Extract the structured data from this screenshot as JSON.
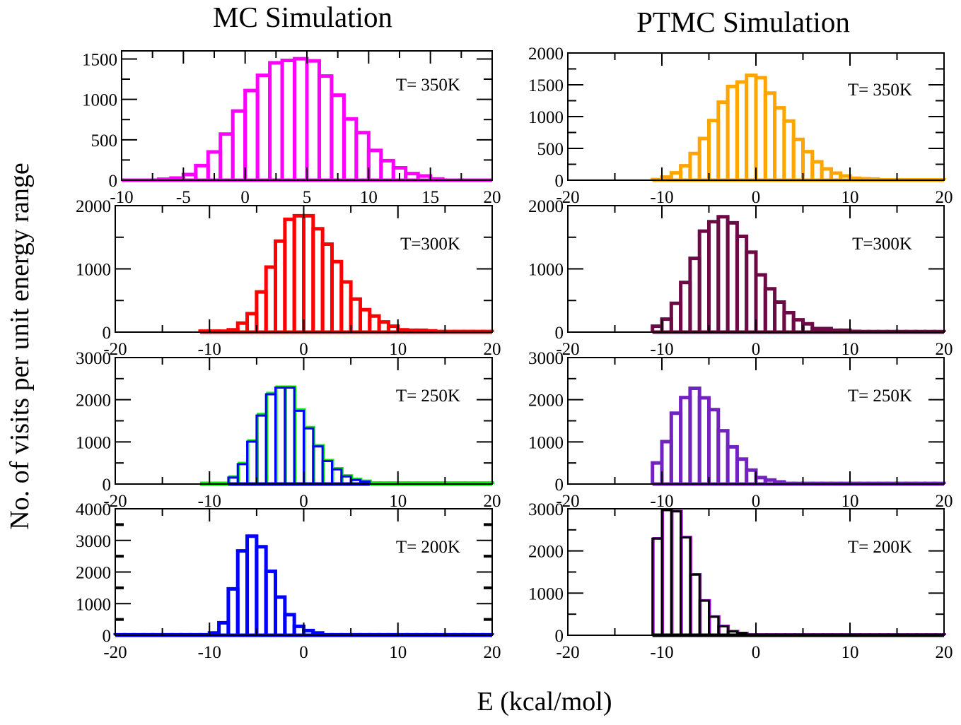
{
  "figure": {
    "column_titles": [
      "MC Simulation",
      "PTMC Simulation"
    ],
    "ylabel": "No. of visits per unit energy range",
    "xlabel": "E (kcal/mol)"
  },
  "chart_data": [
    {
      "type": "bar",
      "id": "mc-350",
      "column": "MC Simulation",
      "annotation": "T= 350K",
      "xlim": [
        -10,
        20
      ],
      "ylim": [
        0,
        1600
      ],
      "xticks": [
        -10,
        -5,
        0,
        5,
        10,
        15,
        20
      ],
      "xminor": 2.5,
      "yticks": [
        0,
        500,
        1000,
        1500
      ],
      "yminor": 250,
      "bin_width": 1,
      "series": [
        {
          "name": "MC 350K",
          "color": "#ff00ff",
          "bin_starts": [
            -10,
            -9,
            -8,
            -7,
            -6,
            -5,
            -4,
            -3,
            -2,
            -1,
            0,
            1,
            2,
            3,
            4,
            5,
            6,
            7,
            8,
            9,
            10,
            11,
            12,
            13,
            14,
            15,
            16,
            17,
            18,
            19
          ],
          "values": [
            0,
            0,
            0,
            12,
            26,
            70,
            180,
            350,
            571,
            856,
            1109,
            1297,
            1453,
            1482,
            1503,
            1476,
            1288,
            1053,
            759,
            588,
            368,
            241,
            153,
            82,
            53,
            15,
            0,
            0,
            0,
            0
          ]
        }
      ]
    },
    {
      "type": "bar",
      "id": "ptmc-350",
      "column": "PTMC Simulation",
      "annotation": "T= 350K",
      "xlim": [
        -20,
        20
      ],
      "ylim": [
        0,
        2000
      ],
      "xticks": [
        -20,
        -10,
        0,
        10,
        20
      ],
      "xminor": 5,
      "yticks": [
        0,
        500,
        1000,
        1500,
        2000
      ],
      "yminor": 250,
      "bin_width": 1,
      "series": [
        {
          "name": "PTMC 350K",
          "color": "#ffa500",
          "bin_starts": [
            -11,
            -10,
            -9,
            -8,
            -7,
            -6,
            -5,
            -4,
            -3,
            -2,
            -1,
            0,
            1,
            2,
            3,
            4,
            5,
            6,
            7,
            8,
            9,
            10,
            11,
            12,
            13,
            14,
            15,
            16,
            17,
            18,
            19
          ],
          "values": [
            10,
            48,
            115,
            226,
            419,
            656,
            937,
            1226,
            1474,
            1544,
            1648,
            1611,
            1370,
            1137,
            930,
            641,
            448,
            289,
            178,
            111,
            67,
            30,
            22,
            18,
            5,
            5,
            5,
            5,
            5,
            5,
            5
          ]
        }
      ]
    },
    {
      "type": "bar",
      "id": "mc-300",
      "column": "MC Simulation",
      "annotation": "T=300K",
      "xlim": [
        -20,
        20
      ],
      "ylim": [
        0,
        2000
      ],
      "xticks": [
        -20,
        -10,
        0,
        10,
        20
      ],
      "xminor": 5,
      "yticks": [
        0,
        1000,
        2000
      ],
      "yminor": 500,
      "bin_width": 1,
      "series": [
        {
          "name": "MC 300K",
          "color": "#ff0000",
          "bin_starts": [
            -11,
            -10,
            -9,
            -8,
            -7,
            -6,
            -5,
            -4,
            -3,
            -2,
            -1,
            0,
            1,
            2,
            3,
            4,
            5,
            6,
            7,
            8,
            9,
            10,
            11,
            12,
            13,
            14,
            15,
            16,
            17,
            18,
            19
          ],
          "values": [
            15,
            15,
            15,
            37,
            142,
            292,
            636,
            1028,
            1439,
            1783,
            1839,
            1839,
            1634,
            1391,
            1114,
            793,
            523,
            355,
            254,
            161,
            93,
            37,
            30,
            30,
            19,
            10,
            10,
            10,
            10,
            10,
            10
          ]
        }
      ]
    },
    {
      "type": "bar",
      "id": "ptmc-300",
      "column": "PTMC Simulation",
      "annotation": "T=300K",
      "xlim": [
        -20,
        20
      ],
      "ylim": [
        0,
        2000
      ],
      "xticks": [
        -20,
        -10,
        0,
        10,
        20
      ],
      "xminor": 5,
      "yticks": [
        0,
        1000,
        2000
      ],
      "yminor": 500,
      "bin_width": 1,
      "series": [
        {
          "name": "PTMC 300K",
          "color": "#6b0a45",
          "bin_starts": [
            -11,
            -10,
            -9,
            -8,
            -7,
            -6,
            -5,
            -4,
            -3,
            -2,
            -1,
            0,
            1,
            2,
            3,
            4,
            5,
            6,
            7,
            8,
            9,
            10,
            11,
            12,
            13,
            14,
            15,
            16,
            17,
            18,
            19
          ],
          "values": [
            93,
            206,
            456,
            785,
            1166,
            1596,
            1746,
            1824,
            1727,
            1514,
            1264,
            905,
            684,
            475,
            307,
            194,
            131,
            56,
            56,
            30,
            30,
            11,
            8,
            8,
            8,
            8,
            8,
            8,
            8,
            8,
            8
          ]
        }
      ]
    },
    {
      "type": "bar",
      "id": "mc-250",
      "column": "MC Simulation",
      "annotation": "T= 250K",
      "xlim": [
        -20,
        20
      ],
      "ylim": [
        0,
        3000
      ],
      "xticks": [
        -20,
        -10,
        0,
        10,
        20
      ],
      "xminor": 5,
      "yticks": [
        0,
        1000,
        2000,
        3000
      ],
      "yminor": 500,
      "bin_width": 1,
      "series": [
        {
          "name": "MC 250K (green)",
          "color": "#00ee00",
          "bin_starts": [
            -11,
            -10,
            -9,
            -8,
            -7,
            -6,
            -5,
            -4,
            -3,
            -2,
            -1,
            0,
            1,
            2,
            3,
            4,
            5,
            6,
            7,
            8,
            9,
            10,
            11,
            12,
            13,
            14,
            15,
            16,
            17,
            18,
            19
          ],
          "values": [
            20,
            20,
            20,
            170,
            490,
            1025,
            1650,
            2150,
            2300,
            2300,
            1760,
            1340,
            910,
            560,
            365,
            195,
            110,
            70,
            28,
            28,
            28,
            28,
            28,
            28,
            28,
            28,
            28,
            28,
            28,
            28,
            28
          ]
        },
        {
          "name": "MC 250K (blue)",
          "color": "#0000ff",
          "bin_starts": [
            -8,
            -7,
            -6,
            -5,
            -4,
            -3,
            -2,
            -1,
            0,
            1,
            2,
            3,
            4,
            5,
            6
          ],
          "values": [
            152,
            472,
            1006,
            1624,
            2129,
            2287,
            2287,
            1736,
            1320,
            893,
            545,
            348,
            180,
            96,
            56
          ]
        }
      ]
    },
    {
      "type": "bar",
      "id": "ptmc-250",
      "column": "PTMC Simulation",
      "annotation": "T= 250K",
      "xlim": [
        -20,
        20
      ],
      "ylim": [
        0,
        3000
      ],
      "xticks": [
        -20,
        -10,
        0,
        10,
        20
      ],
      "xminor": 5,
      "yticks": [
        0,
        1000,
        2000,
        3000
      ],
      "yminor": 500,
      "bin_width": 1,
      "series": [
        {
          "name": "PTMC 250K",
          "color": "#7222c0",
          "bin_starts": [
            -11,
            -10,
            -9,
            -8,
            -7,
            -6,
            -5,
            -4,
            -3,
            -2,
            -1,
            0,
            1,
            2,
            3,
            4,
            5,
            6,
            7,
            8,
            9,
            10,
            11,
            12,
            13,
            14,
            15,
            16,
            17,
            18,
            19
          ],
          "values": [
            500,
            1006,
            1680,
            2051,
            2270,
            2045,
            1764,
            1264,
            882,
            590,
            331,
            152,
            96,
            51,
            15,
            15,
            15,
            15,
            15,
            15,
            15,
            15,
            15,
            15,
            15,
            15,
            15,
            15,
            15,
            15,
            15
          ]
        }
      ]
    },
    {
      "type": "bar",
      "id": "mc-200",
      "column": "MC Simulation",
      "annotation": "T= 200K",
      "xlim": [
        -20,
        20
      ],
      "ylim": [
        0,
        4000
      ],
      "xticks": [
        -20,
        -10,
        0,
        10,
        20
      ],
      "xminor": 5,
      "yticks": [
        0,
        1000,
        2000,
        3000,
        4000
      ],
      "yminor": 500,
      "bin_width": 1,
      "series": [
        {
          "name": "MC 200K",
          "color": "#0000ff",
          "bin_starts": [
            -20,
            -19,
            -18,
            -17,
            -16,
            -15,
            -14,
            -13,
            -12,
            -11,
            -10,
            -9,
            -8,
            -7,
            -6,
            -5,
            -4,
            -3,
            -2,
            -1,
            0,
            1,
            2,
            3,
            4,
            5,
            6,
            7,
            8,
            9,
            10,
            11,
            12,
            13,
            14,
            15,
            16,
            17,
            18,
            19
          ],
          "values": [
            15,
            15,
            15,
            15,
            15,
            15,
            15,
            15,
            15,
            15,
            74,
            393,
            1467,
            2667,
            3133,
            2800,
            2022,
            1207,
            652,
            281,
            148,
            74,
            15,
            15,
            15,
            15,
            15,
            15,
            15,
            15,
            15,
            15,
            15,
            15,
            15,
            15,
            15,
            15,
            15,
            15
          ]
        }
      ]
    },
    {
      "type": "bar",
      "id": "ptmc-200",
      "column": "PTMC Simulation",
      "annotation": "T= 200K",
      "xlim": [
        -20,
        20
      ],
      "ylim": [
        0,
        3000
      ],
      "xticks": [
        -20,
        -10,
        0,
        10,
        20
      ],
      "xminor": 5,
      "yticks": [
        0,
        1000,
        2000,
        3000
      ],
      "yminor": 500,
      "bin_width": 1,
      "series": [
        {
          "name": "PTMC 200K (purple)",
          "color": "#a000d0",
          "bin_starts": [
            -11,
            -10,
            -9,
            -8,
            -7,
            -6,
            -5,
            -4,
            -3,
            -2,
            -1,
            0,
            1,
            2,
            3,
            4,
            5,
            6,
            7,
            8,
            9,
            10,
            11,
            12,
            13,
            14,
            15,
            16,
            17,
            18,
            19
          ],
          "values": [
            2292,
            2966,
            2938,
            2320,
            1438,
            820,
            438,
            213,
            90,
            40,
            10,
            10,
            10,
            10,
            10,
            10,
            10,
            10,
            10,
            10,
            10,
            10,
            10,
            10,
            10,
            10,
            10,
            10,
            10,
            10,
            10
          ]
        },
        {
          "name": "PTMC 200K (black)",
          "color": "#000000",
          "bin_starts": [
            -11,
            -10,
            -9,
            -8,
            -7,
            -6,
            -5,
            -4,
            -3,
            -2,
            -1,
            0,
            1,
            2,
            3,
            4,
            5,
            6,
            7,
            8,
            9,
            10,
            11,
            12,
            13,
            14,
            15,
            16,
            17,
            18,
            19
          ],
          "values": [
            2292,
            2966,
            2938,
            2320,
            1438,
            820,
            438,
            213,
            90,
            56,
            10,
            10,
            10,
            10,
            10,
            10,
            10,
            10,
            10,
            10,
            10,
            10,
            10,
            10,
            10,
            10,
            10,
            10,
            10,
            10,
            10
          ]
        }
      ]
    }
  ]
}
